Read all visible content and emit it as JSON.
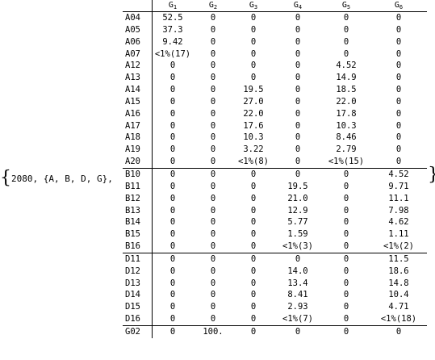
{
  "prefix": {
    "open_brace": "{",
    "text": "2080, {A, B, D, G},",
    "close_brace": "}"
  },
  "table": {
    "columns": [
      {
        "letter": "G",
        "sub": "1"
      },
      {
        "letter": "G",
        "sub": "2"
      },
      {
        "letter": "G",
        "sub": "3"
      },
      {
        "letter": "G",
        "sub": "4"
      },
      {
        "letter": "G",
        "sub": "5"
      },
      {
        "letter": "G",
        "sub": "6"
      }
    ],
    "rows": [
      {
        "label": "A04",
        "cells": [
          "52.5",
          "0",
          "0",
          "0",
          "0",
          "0"
        ]
      },
      {
        "label": "A05",
        "cells": [
          "37.3",
          "0",
          "0",
          "0",
          "0",
          "0"
        ]
      },
      {
        "label": "A06",
        "cells": [
          "9.42",
          "0",
          "0",
          "0",
          "0",
          "0"
        ]
      },
      {
        "label": "A07",
        "cells": [
          "<1%(17)",
          "0",
          "0",
          "0",
          "0",
          "0"
        ]
      },
      {
        "label": "A12",
        "cells": [
          "0",
          "0",
          "0",
          "0",
          "4.52",
          "0"
        ]
      },
      {
        "label": "A13",
        "cells": [
          "0",
          "0",
          "0",
          "0",
          "14.9",
          "0"
        ]
      },
      {
        "label": "A14",
        "cells": [
          "0",
          "0",
          "19.5",
          "0",
          "18.5",
          "0"
        ]
      },
      {
        "label": "A15",
        "cells": [
          "0",
          "0",
          "27.0",
          "0",
          "22.0",
          "0"
        ]
      },
      {
        "label": "A16",
        "cells": [
          "0",
          "0",
          "22.0",
          "0",
          "17.8",
          "0"
        ]
      },
      {
        "label": "A17",
        "cells": [
          "0",
          "0",
          "17.6",
          "0",
          "10.3",
          "0"
        ]
      },
      {
        "label": "A18",
        "cells": [
          "0",
          "0",
          "10.3",
          "0",
          "8.46",
          "0"
        ]
      },
      {
        "label": "A19",
        "cells": [
          "0",
          "0",
          "3.22",
          "0",
          "2.79",
          "0"
        ]
      },
      {
        "label": "A20",
        "cells": [
          "0",
          "0",
          "<1%(8)",
          "0",
          "<1%(15)",
          "0"
        ]
      },
      {
        "label": "B10",
        "cells": [
          "0",
          "0",
          "0",
          "0",
          "0",
          "4.52"
        ]
      },
      {
        "label": "B11",
        "cells": [
          "0",
          "0",
          "0",
          "19.5",
          "0",
          "9.71"
        ]
      },
      {
        "label": "B12",
        "cells": [
          "0",
          "0",
          "0",
          "21.0",
          "0",
          "11.1"
        ]
      },
      {
        "label": "B13",
        "cells": [
          "0",
          "0",
          "0",
          "12.9",
          "0",
          "7.98"
        ]
      },
      {
        "label": "B14",
        "cells": [
          "0",
          "0",
          "0",
          "5.77",
          "0",
          "4.62"
        ]
      },
      {
        "label": "B15",
        "cells": [
          "0",
          "0",
          "0",
          "1.59",
          "0",
          "1.11"
        ]
      },
      {
        "label": "B16",
        "cells": [
          "0",
          "0",
          "0",
          "<1%(3)",
          "0",
          "<1%(2)"
        ]
      },
      {
        "label": "D11",
        "cells": [
          "0",
          "0",
          "0",
          "0",
          "0",
          "11.5"
        ]
      },
      {
        "label": "D12",
        "cells": [
          "0",
          "0",
          "0",
          "14.0",
          "0",
          "18.6"
        ]
      },
      {
        "label": "D13",
        "cells": [
          "0",
          "0",
          "0",
          "13.4",
          "0",
          "14.8"
        ]
      },
      {
        "label": "D14",
        "cells": [
          "0",
          "0",
          "0",
          "8.41",
          "0",
          "10.4"
        ]
      },
      {
        "label": "D15",
        "cells": [
          "0",
          "0",
          "0",
          "2.93",
          "0",
          "4.71"
        ]
      },
      {
        "label": "D16",
        "cells": [
          "0",
          "0",
          "0",
          "<1%(7)",
          "0",
          "<1%(18)"
        ]
      },
      {
        "label": "G02",
        "cells": [
          "0",
          "100.",
          "0",
          "0",
          "0",
          "0"
        ]
      }
    ],
    "group_end_rows": [
      "A20",
      "B16",
      "D16"
    ]
  }
}
